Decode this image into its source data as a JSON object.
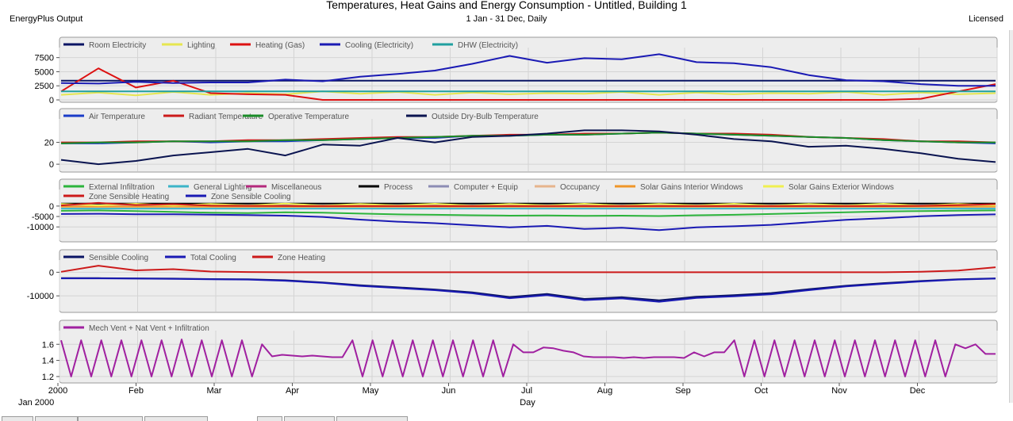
{
  "header": {
    "title": "Temperatures, Heat Gains and Energy Consumption - Untitled, Building 1",
    "subtitle": "1 Jan - 31 Dec, Daily",
    "left_label": "EnergyPlus Output",
    "right_label": "Licensed"
  },
  "chart_data": [
    {
      "type": "line",
      "ylim": [
        0,
        9000
      ],
      "yticks": [
        0,
        2500,
        5000,
        7500
      ],
      "ytick_labels": [
        "0",
        "2500",
        "5000",
        "7500"
      ],
      "series": [
        {
          "name": "Room Electricity",
          "color": "#0a1464",
          "values": [
            3400,
            3400,
            3400,
            3400,
            3400,
            3400,
            3400,
            3400,
            3400,
            3400,
            3400,
            3400,
            3400,
            3400,
            3400,
            3400,
            3400,
            3400,
            3400,
            3400,
            3400,
            3400,
            3400,
            3400,
            3400,
            3400
          ]
        },
        {
          "name": "Lighting",
          "color": "#e6e650",
          "values": [
            900,
            1300,
            800,
            1400,
            900,
            1200,
            1000,
            1500,
            1100,
            1400,
            900,
            1300,
            1000,
            1200,
            1100,
            1400,
            900,
            1300,
            1000,
            1200,
            1100,
            1400,
            900,
            1300,
            1000,
            1200
          ]
        },
        {
          "name": "Heating (Gas)",
          "color": "#dd1111",
          "values": [
            1500,
            5600,
            2200,
            3400,
            1200,
            1000,
            900,
            0,
            0,
            0,
            0,
            0,
            0,
            0,
            0,
            0,
            0,
            0,
            0,
            0,
            0,
            0,
            0,
            200,
            1500,
            2800
          ]
        },
        {
          "name": "Cooling (Electricity)",
          "color": "#1a1ab4",
          "values": [
            3000,
            2900,
            3200,
            3000,
            3100,
            3100,
            3600,
            3300,
            4100,
            4600,
            5200,
            6400,
            7800,
            6600,
            7400,
            7200,
            8100,
            6700,
            6500,
            5800,
            4400,
            3500,
            3300,
            2800,
            2500,
            2500
          ]
        },
        {
          "name": "DHW (Electricity)",
          "color": "#20a0a0",
          "values": [
            1500,
            1500,
            1500,
            1500,
            1500,
            1500,
            1500,
            1500,
            1500,
            1500,
            1500,
            1500,
            1500,
            1500,
            1500,
            1500,
            1500,
            1500,
            1500,
            1500,
            1500,
            1500,
            1500,
            1500,
            1500,
            1500
          ]
        }
      ]
    },
    {
      "type": "line",
      "ylim": [
        -5,
        40
      ],
      "yticks": [
        0,
        20
      ],
      "ytick_labels": [
        "0",
        "20"
      ],
      "series": [
        {
          "name": "Air Temperature",
          "color": "#1a3cc8",
          "values": [
            19,
            19,
            20,
            21,
            20,
            21,
            21,
            22,
            23,
            24,
            24,
            26,
            26,
            27,
            27,
            28,
            29,
            28,
            27,
            26,
            25,
            24,
            22,
            21,
            20,
            19
          ]
        },
        {
          "name": "Radiant Temperature",
          "color": "#cc1a1a",
          "values": [
            20,
            20,
            21,
            21,
            21,
            22,
            22,
            23,
            24,
            25,
            25,
            26,
            27,
            27,
            28,
            28,
            29,
            28,
            28,
            27,
            25,
            24,
            23,
            21,
            21,
            20
          ]
        },
        {
          "name": "Operative Temperature",
          "color": "#1a8c28",
          "values": [
            19,
            20,
            20,
            21,
            21,
            21,
            22,
            22,
            23,
            24,
            25,
            26,
            26,
            27,
            27,
            28,
            29,
            28,
            27,
            26,
            25,
            24,
            22,
            21,
            20,
            20
          ]
        },
        {
          "name": "Outside Dry-Bulb Temperature",
          "color": "#0a1450",
          "values": [
            4,
            0,
            3,
            8,
            11,
            14,
            8,
            18,
            17,
            24,
            20,
            25,
            26,
            28,
            31,
            31,
            30,
            27,
            23,
            21,
            16,
            17,
            14,
            10,
            5,
            2
          ]
        }
      ]
    },
    {
      "type": "line",
      "ylim": [
        -16000,
        3000
      ],
      "yticks": [
        0,
        -5000,
        -10000
      ],
      "ytick_labels": [
        "0",
        "-5000",
        "-10000"
      ],
      "series": [
        {
          "name": "External Infiltration",
          "color": "#2cb43c",
          "values": [
            -2300,
            -2100,
            -2400,
            -2800,
            -3200,
            -3400,
            -3000,
            -3200,
            -3600,
            -4000,
            -4200,
            -4400,
            -4600,
            -4500,
            -4700,
            -4600,
            -4800,
            -4400,
            -4200,
            -3800,
            -3400,
            -3000,
            -2600,
            -2400,
            -2200,
            -2100
          ]
        },
        {
          "name": "General Lighting",
          "color": "#3cb4c8",
          "values": [
            -1200,
            -1200,
            -1200,
            -1200,
            -1200,
            -1200,
            -1200,
            -1200,
            -1200,
            -1200,
            -1200,
            -1200,
            -1200,
            -1200,
            -1200,
            -1200,
            -1200,
            -1200,
            -1200,
            -1200,
            -1200,
            -1200,
            -1200,
            -1200,
            -1200,
            -1200
          ]
        },
        {
          "name": "Miscellaneous",
          "color": "#b4287c",
          "values": [
            800,
            800,
            800,
            800,
            800,
            800,
            800,
            800,
            800,
            800,
            800,
            800,
            800,
            800,
            800,
            800,
            800,
            800,
            800,
            800,
            800,
            800,
            800,
            800,
            800,
            800
          ]
        },
        {
          "name": "Process",
          "color": "#000000",
          "values": [
            1200,
            1200,
            1200,
            1200,
            1200,
            1200,
            1200,
            1200,
            1200,
            1200,
            1200,
            1200,
            1200,
            1200,
            1200,
            1200,
            1200,
            1200,
            1200,
            1200,
            1200,
            1200,
            1200,
            1200,
            1200,
            1200
          ]
        },
        {
          "name": "Computer + Equip",
          "color": "#8c8cb4",
          "values": [
            500,
            500,
            500,
            500,
            500,
            500,
            500,
            500,
            500,
            500,
            500,
            500,
            500,
            500,
            500,
            500,
            500,
            500,
            500,
            500,
            500,
            500,
            500,
            500,
            500,
            500
          ]
        },
        {
          "name": "Occupancy",
          "color": "#e6b48c",
          "values": [
            200,
            200,
            200,
            200,
            200,
            200,
            200,
            200,
            200,
            200,
            200,
            200,
            200,
            200,
            200,
            200,
            200,
            200,
            200,
            200,
            200,
            200,
            200,
            200,
            200,
            200
          ]
        },
        {
          "name": "Solar Gains Interior Windows",
          "color": "#f09628",
          "values": [
            -300,
            -300,
            -300,
            -300,
            -300,
            -300,
            -300,
            -300,
            -300,
            -300,
            -300,
            -300,
            -300,
            -300,
            -300,
            -300,
            -300,
            -300,
            -300,
            -300,
            -300,
            -300,
            -300,
            -300,
            -300,
            -300
          ]
        },
        {
          "name": "Solar Gains Exterior Windows",
          "color": "#f0f050",
          "values": [
            1000,
            300,
            1100,
            200,
            1000,
            300,
            1200,
            200,
            1000,
            300,
            1100,
            200,
            1000,
            300,
            1100,
            200,
            1000,
            300,
            1100,
            200,
            1000,
            300,
            1100,
            200,
            1000,
            300
          ]
        },
        {
          "name": "Zone Sensible Heating",
          "color": "#cc1a1a",
          "values": [
            300,
            1500,
            500,
            900,
            200,
            100,
            50,
            0,
            0,
            0,
            0,
            0,
            0,
            0,
            0,
            0,
            0,
            0,
            0,
            0,
            0,
            0,
            0,
            100,
            400,
            900
          ]
        },
        {
          "name": "Zone Sensible Cooling",
          "color": "#1a1ab4",
          "values": [
            -3800,
            -3700,
            -3900,
            -3900,
            -4100,
            -4300,
            -4600,
            -5200,
            -6500,
            -7500,
            -8200,
            -9200,
            -10200,
            -9500,
            -11000,
            -10400,
            -11500,
            -10200,
            -9700,
            -9000,
            -7800,
            -6600,
            -5800,
            -4900,
            -4300,
            -4000
          ]
        }
      ]
    },
    {
      "type": "line",
      "ylim": [
        -16000,
        4500
      ],
      "yticks": [
        0,
        -10000
      ],
      "ytick_labels": [
        "0",
        "-10000"
      ],
      "series": [
        {
          "name": "Sensible Cooling",
          "color": "#0a1464",
          "values": [
            -2500,
            -2500,
            -2600,
            -2700,
            -2900,
            -3000,
            -3400,
            -4300,
            -5500,
            -6400,
            -7300,
            -8500,
            -10500,
            -9200,
            -11300,
            -10600,
            -11900,
            -10400,
            -9700,
            -8800,
            -7200,
            -5700,
            -4600,
            -3700,
            -3000,
            -2600
          ]
        },
        {
          "name": "Total Cooling",
          "color": "#1a1ab4",
          "values": [
            -2600,
            -2600,
            -2700,
            -2800,
            -3000,
            -3100,
            -3600,
            -4500,
            -5800,
            -6700,
            -7600,
            -8900,
            -11000,
            -9700,
            -11800,
            -11100,
            -12500,
            -10900,
            -10200,
            -9300,
            -7600,
            -6000,
            -4900,
            -3900,
            -3100,
            -2700
          ]
        },
        {
          "name": "Zone Heating",
          "color": "#cc1a1a",
          "values": [
            200,
            2800,
            800,
            1300,
            300,
            100,
            0,
            0,
            0,
            0,
            0,
            0,
            0,
            0,
            0,
            0,
            0,
            0,
            0,
            0,
            0,
            0,
            0,
            200,
            700,
            2100
          ]
        }
      ]
    },
    {
      "type": "line",
      "ylim": [
        1.15,
        1.75
      ],
      "yticks": [
        1.2,
        1.4,
        1.6
      ],
      "ytick_labels": [
        "1.2",
        "1.4",
        "1.6"
      ],
      "series": [
        {
          "name": "Mech Vent + Nat Vent + Infiltration",
          "color": "#a020a0",
          "values": [
            1.65,
            1.2,
            1.65,
            1.2,
            1.65,
            1.2,
            1.65,
            1.2,
            1.65,
            1.2,
            1.65,
            1.2,
            1.66,
            1.2,
            1.65,
            1.2,
            1.65,
            1.2,
            1.65,
            1.2,
            1.6,
            1.45,
            1.47,
            1.46,
            1.45,
            1.46,
            1.45,
            1.44,
            1.44,
            1.65,
            1.2,
            1.65,
            1.2,
            1.65,
            1.2,
            1.65,
            1.2,
            1.65,
            1.2,
            1.65,
            1.2,
            1.65,
            1.2,
            1.65,
            1.2,
            1.6,
            1.5,
            1.5,
            1.56,
            1.55,
            1.52,
            1.5,
            1.45,
            1.44,
            1.44,
            1.44,
            1.43,
            1.44,
            1.43,
            1.44,
            1.44,
            1.44,
            1.43,
            1.5,
            1.45,
            1.5,
            1.5,
            1.65,
            1.2,
            1.65,
            1.2,
            1.65,
            1.2,
            1.65,
            1.2,
            1.65,
            1.2,
            1.65,
            1.2,
            1.65,
            1.2,
            1.65,
            1.2,
            1.65,
            1.2,
            1.65,
            1.2,
            1.65,
            1.2,
            1.6,
            1.55,
            1.6,
            1.48,
            1.48
          ]
        }
      ]
    }
  ],
  "x_axis": {
    "ticks": [
      "2000",
      "Feb",
      "Mar",
      "Apr",
      "May",
      "Jun",
      "Jul",
      "Aug",
      "Sep",
      "Oct",
      "Nov",
      "Dec"
    ],
    "start_label": "Jan 2000",
    "xlabel": "Day"
  }
}
